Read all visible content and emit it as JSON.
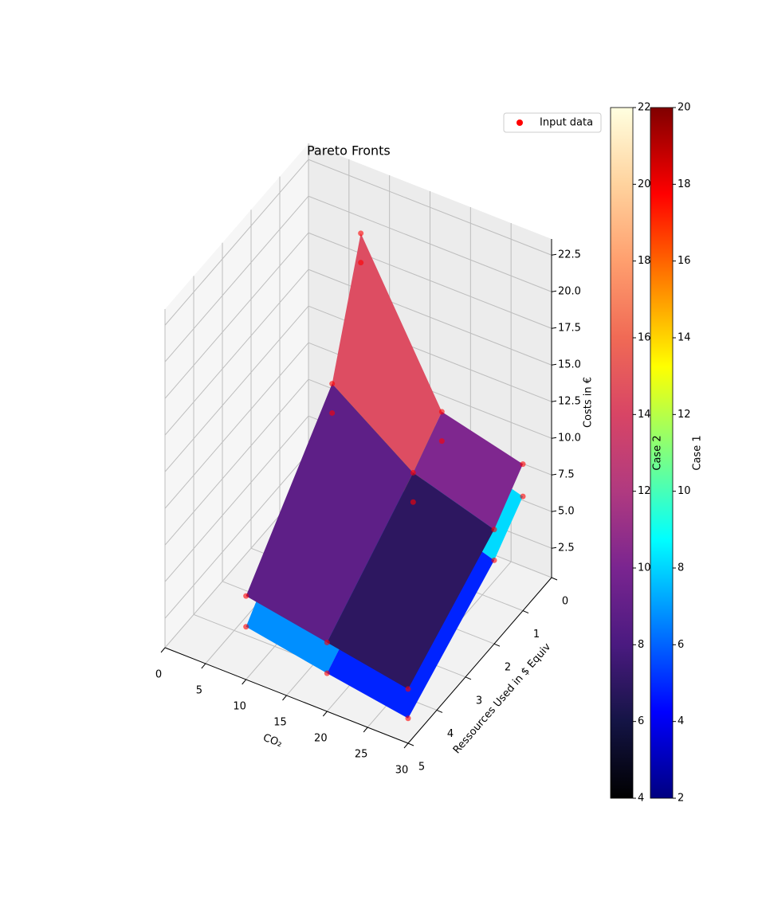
{
  "chart_data": {
    "type": "surface3d",
    "title": "Pareto Fronts",
    "xlabel": "CO₂",
    "ylabel": "Ressources Used in $ Equiv",
    "zlabel": "Costs in €",
    "x": [
      10,
      20,
      30
    ],
    "y": [
      5,
      2,
      1
    ],
    "xlim": [
      0,
      30
    ],
    "ylim": [
      0,
      5
    ],
    "zlim": [
      0.5,
      23.6
    ],
    "xticks": [
      0,
      5,
      10,
      15,
      20,
      25,
      30
    ],
    "yticks": [
      0,
      1,
      2,
      3,
      4,
      5
    ],
    "zticks": [
      2.5,
      {
        "value": 5,
        "label": "5.0"
      },
      7.5,
      {
        "value": 10,
        "label": "10.0"
      },
      12.5,
      {
        "value": 15,
        "label": "15.0"
      },
      17.5,
      {
        "value": 20,
        "label": "20.0"
      },
      22.5
    ],
    "series": [
      {
        "name": "Case 1",
        "colormap": "jet",
        "clim": [
          2,
          20
        ],
        "cticks": [
          2,
          4,
          6,
          8,
          10,
          12,
          14,
          16,
          18,
          20
        ],
        "z": [
          [
            4.1,
            3.1,
            2.2
          ],
          [
            11.9,
            8,
            6.2
          ],
          [
            19.9,
            9.9,
            8.3
          ]
        ]
      },
      {
        "name": "Case 2",
        "colormap": "CMRmap",
        "clim": [
          4,
          22
        ],
        "cticks": [
          4,
          6,
          8,
          10,
          12,
          14,
          16,
          18,
          20,
          22
        ],
        "z": [
          [
            6.2,
            5.2,
            4.2
          ],
          [
            13.9,
            10,
            8.3
          ],
          [
            21.9,
            11.9,
            10.5
          ]
        ]
      }
    ],
    "points": {
      "name": "Input data",
      "color": "#ff0000"
    },
    "legend": "upper right",
    "grid": true
  }
}
